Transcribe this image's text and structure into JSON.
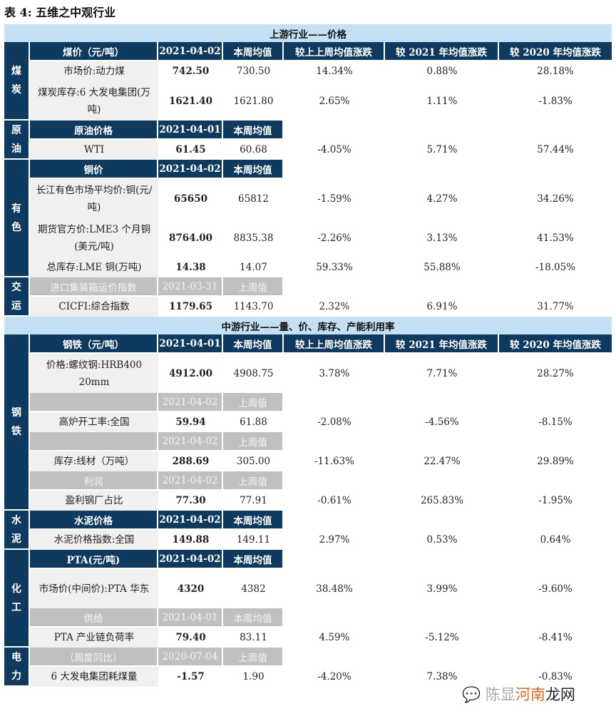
{
  "title": "表 4:  五维之中观行业",
  "change_headers": [
    "较上上周均值涨跌",
    "较 2021 年均值涨跌",
    "较 2020 年均值涨跌"
  ],
  "sections": [
    {
      "title": "上游行业——价格",
      "groups": [
        {
          "category": "煤炭",
          "rows": [
            {
              "type": "header",
              "label": "煤价（元/吨）",
              "date": "2021-04-02",
              "avg": "本周均值",
              "show_changes": true
            },
            {
              "type": "data",
              "label": "市场价:动力煤",
              "value": "742.50",
              "avg": "730.50",
              "changes": [
                "14.34%",
                "0.88%",
                "28.18%"
              ]
            },
            {
              "type": "data",
              "label": "煤炭库存:6 大发电集团(万吨)",
              "value": "1621.40",
              "avg": "1621.80",
              "changes": [
                "2.65%",
                "1.11%",
                "-1.83%"
              ],
              "tall": true
            }
          ]
        },
        {
          "category": "原油",
          "rows": [
            {
              "type": "header",
              "label": "原油价格",
              "date": "2021-04-01",
              "avg": "本周均值"
            },
            {
              "type": "data",
              "label": "WTI",
              "value": "61.45",
              "avg": "60.68",
              "changes": [
                "-4.05%",
                "5.71%",
                "57.44%"
              ]
            }
          ]
        },
        {
          "category": "有色",
          "rows": [
            {
              "type": "header",
              "label": "铜价",
              "date": "2021-04-02",
              "avg": "本周均值"
            },
            {
              "type": "data",
              "label": "长江有色市场平均价:铜(元/吨)",
              "value": "65650",
              "avg": "65812",
              "changes": [
                "-1.59%",
                "4.27%",
                "34.26%"
              ],
              "tall": true
            },
            {
              "type": "data",
              "label": "期货官方价:LME3 个月铜(美元/吨)",
              "value": "8764.00",
              "avg": "8835.38",
              "changes": [
                "-2.26%",
                "3.13%",
                "41.53%"
              ],
              "tall": true
            },
            {
              "type": "data",
              "label": "总库存:LME 铜(万吨)",
              "value": "14.38",
              "avg": "14.07",
              "changes": [
                "59.33%",
                "55.88%",
                "-18.05%"
              ]
            }
          ]
        },
        {
          "category": "交运",
          "rows": [
            {
              "type": "gray",
              "label": "进口集装箱运价指数",
              "date": "2021-03-31",
              "avg": "上周值"
            },
            {
              "type": "data",
              "label": "CICFI:综合指数",
              "value": "1179.65",
              "avg": "1143.70",
              "changes": [
                "2.32%",
                "6.91%",
                "31.77%"
              ]
            }
          ]
        }
      ]
    },
    {
      "title": "中游行业——量、价、库存、产能利用率",
      "groups": [
        {
          "category": "钢铁",
          "rows": [
            {
              "type": "header",
              "label": "钢铁（元/吨）",
              "date": "2021-04-01",
              "avg": "本周均值",
              "show_changes": true
            },
            {
              "type": "data",
              "label": "价格:螺纹钢:HRB400 20mm",
              "value": "4912.00",
              "avg": "4908.75",
              "changes": [
                "3.78%",
                "7.71%",
                "28.27%"
              ],
              "tall": true
            },
            {
              "type": "gray",
              "label": "",
              "date": "2021-04-02",
              "avg": "上周值"
            },
            {
              "type": "data",
              "label": "高炉开工率:全国",
              "value": "59.94",
              "avg": "61.88",
              "changes": [
                "-2.08%",
                "-4.56%",
                "-8.15%"
              ]
            },
            {
              "type": "gray",
              "label": "",
              "date": "2021-04-02",
              "avg": "上周值"
            },
            {
              "type": "data",
              "label": "库存:线材（万吨）",
              "value": "288.69",
              "avg": "305.00",
              "changes": [
                "-11.63%",
                "22.47%",
                "29.89%"
              ]
            },
            {
              "type": "gray",
              "label": "利润",
              "date": "2021-04-02",
              "avg": "上周值"
            },
            {
              "type": "data",
              "label": "盈利钢厂占比",
              "value": "77.30",
              "avg": "77.91",
              "changes": [
                "-0.61%",
                "265.83%",
                "-1.95%"
              ]
            }
          ]
        },
        {
          "category": "水泥",
          "rows": [
            {
              "type": "header",
              "label": "水泥价格",
              "date": "2021-04-02",
              "avg": "本周均值"
            },
            {
              "type": "data",
              "label": "水泥价格指数:全国",
              "value": "149.88",
              "avg": "149.11",
              "changes": [
                "2.97%",
                "0.53%",
                "0.64%"
              ]
            }
          ]
        },
        {
          "category": "化工",
          "rows": [
            {
              "type": "header",
              "label": "PTA(元/吨)",
              "date": "2021-04-02",
              "avg": "本周均值"
            },
            {
              "type": "data",
              "label": "市场价(中间价):PTA 华东",
              "value": "4320",
              "avg": "4382",
              "changes": [
                "38.48%",
                "3.99%",
                "-9.60%"
              ],
              "tall": true
            },
            {
              "type": "gray",
              "label": "供给",
              "date": "2021-04-01",
              "avg": "本周均值"
            },
            {
              "type": "data",
              "label": "PTA 产业链负荷率",
              "value": "79.40",
              "avg": "83.11",
              "changes": [
                "4.59%",
                "-5.12%",
                "-8.41%"
              ]
            }
          ]
        },
        {
          "category": "电力",
          "rows": [
            {
              "type": "gray",
              "label": "（周度同比）",
              "date": "2020-07-04",
              "avg": "上周值"
            },
            {
              "type": "data",
              "label": "6 大发电集团耗煤量",
              "value": "-1.57",
              "avg": "1.90",
              "changes": [
                "-4.20%",
                "7.38%",
                "-0.83%"
              ]
            }
          ]
        }
      ]
    }
  ],
  "watermark": {
    "text1": "陈显",
    "text2": "河南",
    "text3": "龙网"
  },
  "colors": {
    "navy": "#0e3a60",
    "section": "#c5dff3",
    "gray_header": "#c0c0c0",
    "label_bg": "#f0f0f0"
  }
}
